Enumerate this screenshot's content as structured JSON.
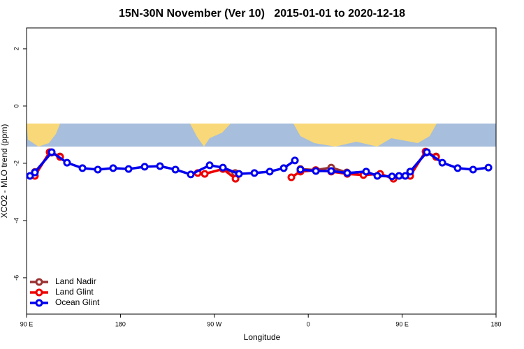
{
  "chart_data": {
    "type": "line",
    "title": "15N-30N November (Ver 10)   2015-01-01 to 2020-12-18",
    "xlabel": "Longitude",
    "ylabel": "XCO2 - MLO trend (ppm)",
    "xlim": [
      90,
      540
    ],
    "xticks": [
      {
        "value": 90,
        "label": "90 E"
      },
      180,
      {
        "value": 270,
        "label": "90 W"
      },
      {
        "value": 360,
        "label": "0"
      },
      {
        "value": 450,
        "label": "90 E"
      },
      {
        "value": 540,
        "label": "180"
      }
    ],
    "ylim": [
      -7.27,
      2.73
    ],
    "yticks": [
      2,
      0,
      -2,
      -4,
      -6
    ],
    "legend": "bottom-left",
    "series": [
      {
        "name": "Land Nadir",
        "color": "#993333",
        "x": [
          98,
          114,
          122,
          null,
          278,
          290,
          null,
          352.5,
          367,
          382,
          397,
          null,
          457.7,
          473,
          482.5
        ],
        "values": [
          -2.3,
          -1.63,
          -1.76,
          null,
          -2.18,
          -2.34,
          null,
          -2.2,
          -2.24,
          -2.15,
          -2.32,
          null,
          -2.3,
          -1.63,
          -1.76
        ]
      },
      {
        "name": "Land Glint",
        "color": "#ee0000",
        "x": [
          98,
          112.1,
          122.2,
          null,
          254.1,
          260.8,
          278.2,
          290.3,
          null,
          343.8,
          352.5,
          367.3,
          382,
          397.4,
          412.9,
          428.9,
          441.7,
          457.7,
          472.4,
          482.5
        ],
        "values": [
          -2.44,
          -1.61,
          -1.78,
          null,
          -2.34,
          -2.37,
          -2.2,
          -2.54,
          null,
          -2.49,
          -2.29,
          -2.24,
          -2.29,
          -2.37,
          -2.41,
          -2.37,
          -2.54,
          -2.44,
          -1.59,
          -1.78
        ]
      },
      {
        "name": "Ocean Glint",
        "color": "#0000ee",
        "x": [
          93.3,
          98,
          114.1,
          128.8,
          143.6,
          158.3,
          173,
          187.8,
          203.2,
          217.9,
          232.7,
          247.4,
          265.5,
          278.2,
          293.6,
          308.4,
          323.1,
          336.5,
          347.2,
          null,
          352.5,
          367.3,
          382,
          397.4,
          415.5,
          426.2,
          440.3,
          447,
          453,
          457.7,
          473.7,
          488.5,
          503.2,
          518,
          532.7
        ],
        "values": [
          -2.44,
          -2.32,
          -1.61,
          -1.98,
          -2.17,
          -2.22,
          -2.17,
          -2.2,
          -2.12,
          -2.1,
          -2.22,
          -2.39,
          -2.07,
          -2.15,
          -2.37,
          -2.34,
          -2.29,
          -2.17,
          -1.9,
          null,
          -2.22,
          -2.27,
          -2.27,
          -2.34,
          -2.29,
          -2.44,
          -2.46,
          -2.44,
          -2.44,
          -2.29,
          -1.61,
          -1.98,
          -2.17,
          -2.22,
          -2.15
        ]
      }
    ]
  }
}
